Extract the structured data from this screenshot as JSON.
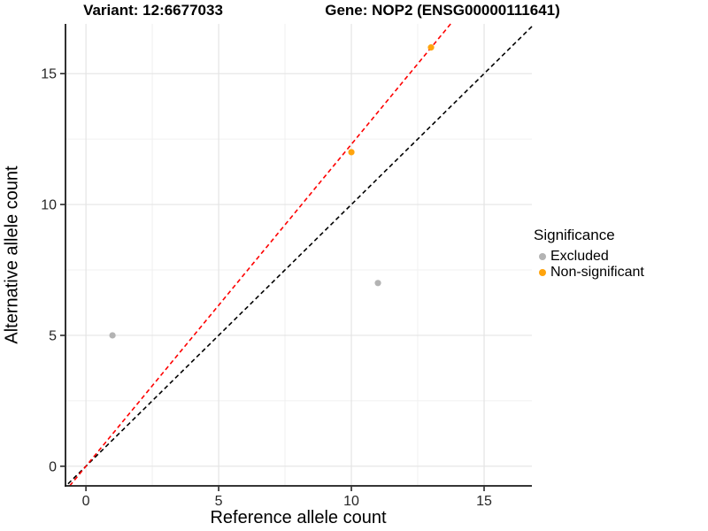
{
  "header": {
    "variant_title": "Variant: 12:6677033",
    "gene_title": "Gene: NOP2 (ENSG00000111641)"
  },
  "legend": {
    "title": "Significance",
    "position": "right",
    "items": [
      {
        "label": "Excluded",
        "color": "#B3B3B3"
      },
      {
        "label": "Non-significant",
        "color": "#FFA40D"
      }
    ]
  },
  "chart_data": {
    "type": "scatter",
    "title_left": "Variant: 12:6677033",
    "title_right": "Gene: NOP2 (ENSG00000111641)",
    "xlabel": "Reference allele count",
    "ylabel": "Alternative allele count",
    "xlim": [
      -0.77,
      16.8
    ],
    "ylim": [
      -0.75,
      16.9
    ],
    "xticks": [
      0,
      5,
      10,
      15
    ],
    "yticks": [
      0,
      5,
      10,
      15
    ],
    "xticks_minor": [
      2.5,
      7.5,
      12.5
    ],
    "yticks_minor": [
      2.5,
      7.5,
      12.5
    ],
    "grid": "major and minor gridlines on white background",
    "legend_position": "right",
    "series": [
      {
        "name": "Excluded",
        "marker": "circle",
        "color": "#B3B3B3",
        "points": [
          [
            1,
            5
          ],
          [
            11,
            7
          ]
        ]
      },
      {
        "name": "Non-significant",
        "marker": "circle",
        "color": "#FFA40D",
        "points": [
          [
            10,
            12
          ],
          [
            13,
            16
          ]
        ]
      }
    ],
    "ablines": [
      {
        "name": "identity",
        "slope": 1,
        "intercept": 0,
        "color": "#000000",
        "linestyle": "dashed"
      },
      {
        "name": "fitted-ratio",
        "slope": 1.23,
        "intercept": 0,
        "color": "#FE0000",
        "linestyle": "dashed"
      }
    ],
    "grid_color_major": "#E4E4E4",
    "grid_color_minor": "#F0F0F0",
    "axis_color": "#1A1A1A",
    "tick_label_color": "#262626"
  }
}
